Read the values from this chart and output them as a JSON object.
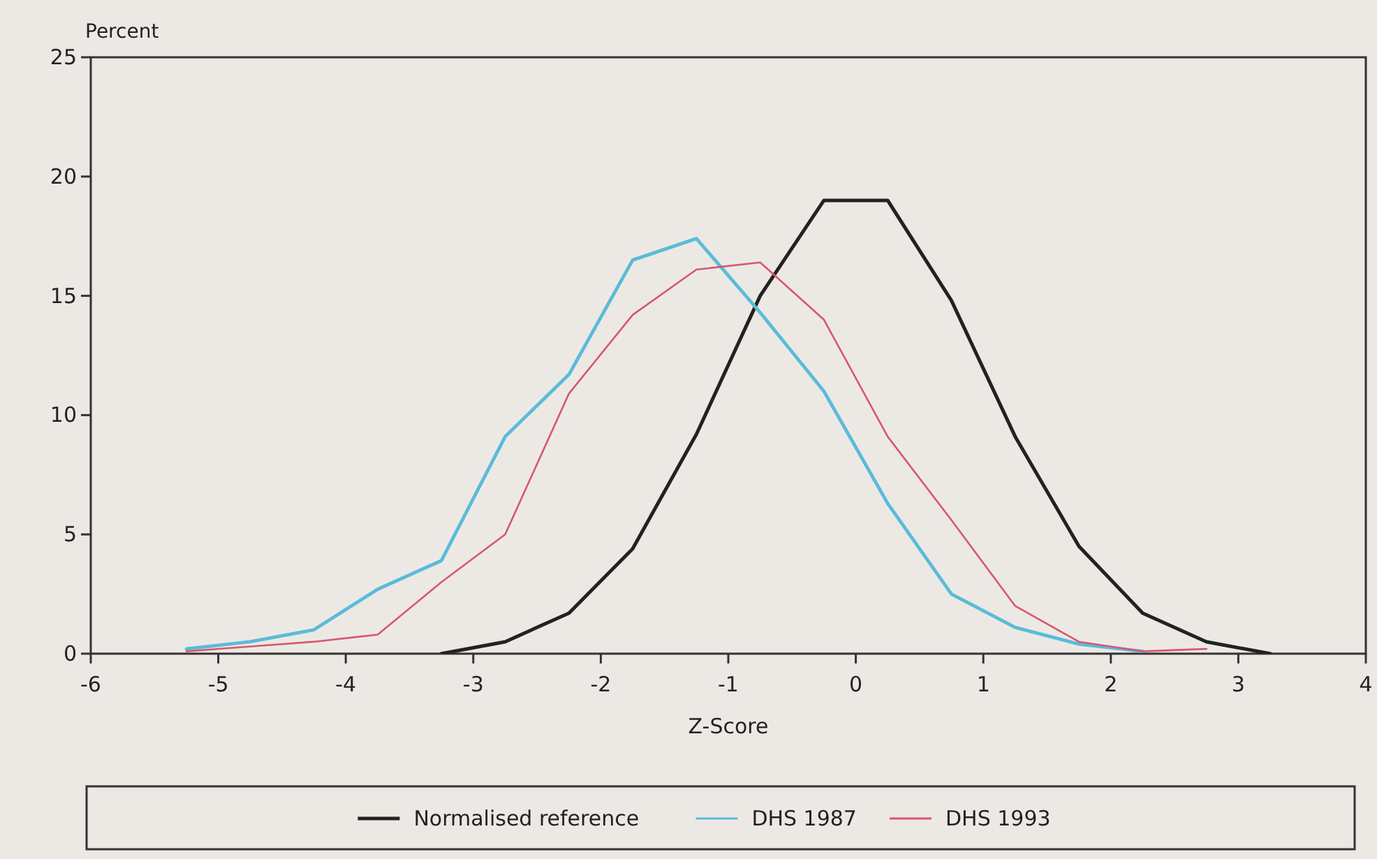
{
  "chart_data": {
    "type": "line",
    "xlabel": "Z-Score",
    "ylabel": "Percent",
    "xlim": [
      -6,
      4
    ],
    "xticks": [
      -6,
      -5,
      -4,
      -3,
      -2,
      -1,
      0,
      1,
      2,
      3,
      4
    ],
    "ylim": [
      0,
      25
    ],
    "yticks": [
      0,
      5,
      10,
      15,
      20,
      25
    ],
    "grid": false,
    "legend": "bottom",
    "marker": "none",
    "line_style": "solid",
    "series": [
      {
        "name": "Normalised reference",
        "color": "#222222",
        "x": [
          -3.25,
          -2.75,
          -2.25,
          -1.75,
          -1.25,
          -0.75,
          -0.25,
          0.25,
          0.75,
          1.25,
          1.75,
          2.25,
          2.75,
          3.25
        ],
        "values": [
          0,
          0.5,
          1.7,
          4.4,
          9.2,
          15,
          19,
          19,
          14.8,
          9.1,
          4.5,
          1.7,
          0.5,
          0
        ]
      },
      {
        "name": "DHS 1987",
        "color": "#5bbbd8",
        "x": [
          -5.25,
          -4.75,
          -4.25,
          -3.75,
          -3.25,
          -2.75,
          -2.25,
          -1.75,
          -1.25,
          -0.75,
          -0.25,
          0.25,
          0.75,
          1.25,
          1.75,
          2.25
        ],
        "values": [
          0.2,
          0.5,
          1.0,
          2.7,
          3.9,
          9.1,
          11.7,
          16.5,
          17.4,
          14.3,
          11,
          6.3,
          2.5,
          1.1,
          0.4,
          0.1
        ]
      },
      {
        "name": "DHS 1993",
        "color": "#d9566f",
        "x": [
          -5.25,
          -4.75,
          -4.25,
          -3.75,
          -3.25,
          -2.75,
          -2.25,
          -1.75,
          -1.25,
          -0.75,
          -0.25,
          0.25,
          0.75,
          1.25,
          1.75,
          2.25,
          2.75
        ],
        "values": [
          0.1,
          0.3,
          0.5,
          0.8,
          3.0,
          5.0,
          10.9,
          14.2,
          16.1,
          16.4,
          14,
          9.1,
          5.6,
          2.0,
          0.5,
          0.1,
          0.2
        ]
      }
    ]
  }
}
